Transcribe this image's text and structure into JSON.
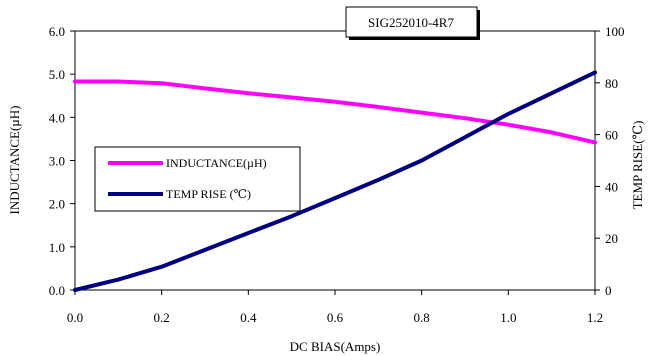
{
  "chart_data": {
    "type": "line",
    "title": "SIG252010-4R7",
    "xlabel": "DC BIAS(Amps)",
    "ylabel": "INDUCTANCE(µH)",
    "y2label": "TEMP RISE(℃)",
    "xlim": [
      0.0,
      1.2
    ],
    "ylim": [
      0.0,
      6.0
    ],
    "y2lim": [
      0,
      100
    ],
    "x_ticks": [
      "0.0",
      "0.2",
      "0.4",
      "0.6",
      "0.8",
      "1.0",
      "1.2"
    ],
    "y_ticks": [
      "0.0",
      "1.0",
      "2.0",
      "3.0",
      "4.0",
      "5.0",
      "6.0"
    ],
    "y2_ticks": [
      "0",
      "20",
      "40",
      "60",
      "80",
      "100"
    ],
    "grid": false,
    "legend_position": "center-left",
    "series": [
      {
        "name": "INDUCTANCE(µH)",
        "axis": "left",
        "color": "#ff00ff",
        "x": [
          0.0,
          0.1,
          0.2,
          0.3,
          0.4,
          0.5,
          0.6,
          0.7,
          0.8,
          0.9,
          1.0,
          1.1,
          1.2
        ],
        "y": [
          4.83,
          4.83,
          4.79,
          4.67,
          4.56,
          4.46,
          4.36,
          4.24,
          4.11,
          3.98,
          3.83,
          3.65,
          3.42
        ]
      },
      {
        "name": "TEMP RISE (℃)",
        "axis": "right",
        "color": "#000080",
        "x": [
          0.0,
          0.1,
          0.2,
          0.3,
          0.4,
          0.5,
          0.6,
          0.7,
          0.8,
          0.9,
          1.0,
          1.1,
          1.2
        ],
        "y": [
          0,
          4,
          9,
          15.5,
          22,
          28.5,
          35.5,
          42.5,
          50,
          59,
          68,
          76,
          84
        ]
      }
    ]
  }
}
